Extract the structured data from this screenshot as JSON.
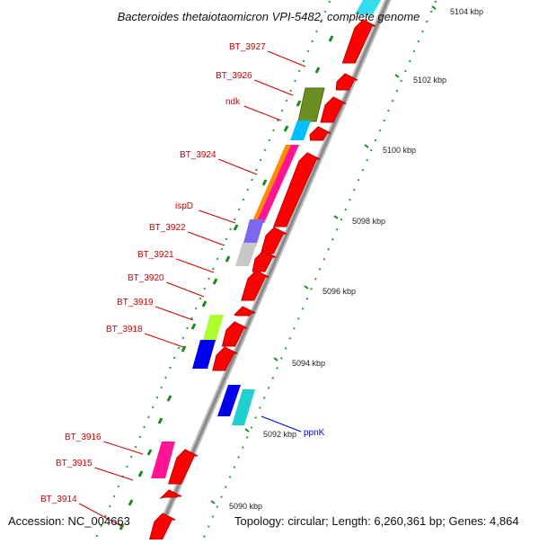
{
  "title": "Bacteroides thetaiotaomicron VPI-5482, complete genome",
  "footer": {
    "accession": "Accession: NC_004663",
    "topology": "Topology: circular; Length: 6,260,361 bp; Genes: 4,864"
  },
  "scale_ticks": [
    "5090 kbp",
    "5092 kbp",
    "5094 kbp",
    "5096 kbp",
    "5098 kbp",
    "5100 kbp",
    "5102 kbp",
    "5104 kbp"
  ],
  "gene_labels": [
    "BT_3927",
    "BT_3926",
    "ndk",
    "BT_3924",
    "ispD",
    "BT_3922",
    "BT_3921",
    "BT_3920",
    "BT_3919",
    "BT_3918",
    "BT_3916",
    "BT_3915",
    "BT_3914",
    "ppnK"
  ],
  "colors": {
    "label_red": "#cc0000",
    "label_blue": "#0000cc",
    "backbone": "#909090",
    "arrow_red": "#ff0000",
    "tick_green": "#1a8a1a",
    "dot_green": "#2a9a2a"
  },
  "gene_colors": [
    "#6b8e23",
    "#00bfff",
    "#ff8c00",
    "#ff1493",
    "#7b68ee",
    "#c0c0c0",
    "#adff2f",
    "#0000ee",
    "#20d0d0",
    "#ff1493",
    "#33ddee"
  ]
}
